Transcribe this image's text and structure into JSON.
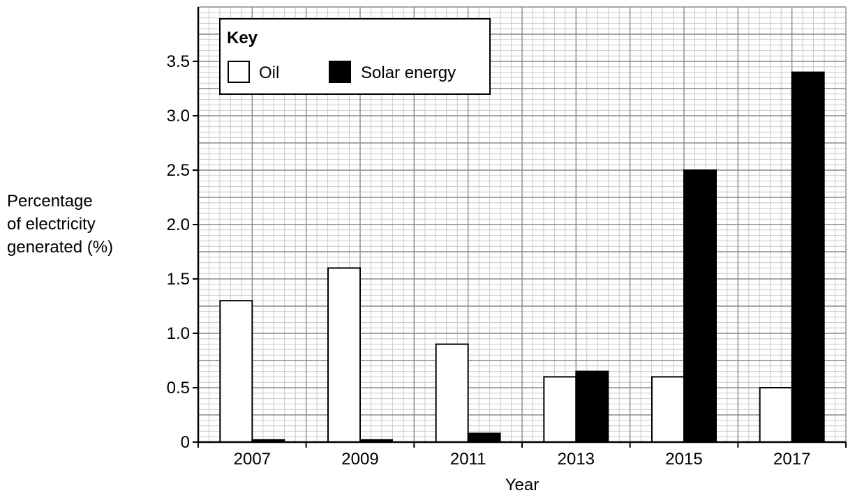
{
  "chart_data": {
    "type": "bar",
    "categories": [
      "2007",
      "2009",
      "2011",
      "2013",
      "2015",
      "2017"
    ],
    "series": [
      {
        "name": "Oil",
        "color": "#ffffff",
        "values": [
          1.3,
          1.6,
          0.9,
          0.6,
          0.6,
          0.5
        ]
      },
      {
        "name": "Solar energy",
        "color": "#000000",
        "values": [
          0.02,
          0.02,
          0.08,
          0.65,
          2.5,
          3.4
        ]
      }
    ],
    "xlabel": "Year",
    "ylabel_lines": [
      "Percentage",
      "of electricity",
      "generated (%)"
    ],
    "yticks": [
      0,
      0.5,
      1.0,
      1.5,
      2.0,
      2.5,
      3.0,
      3.5
    ],
    "ytick_labels": [
      "0",
      "0.5",
      "1.0",
      "1.5",
      "2.0",
      "2.5",
      "3.0",
      "3.5"
    ],
    "ylim": [
      0,
      4.0
    ],
    "grid": true,
    "legend": {
      "title": "Key",
      "position": "top-left"
    }
  }
}
